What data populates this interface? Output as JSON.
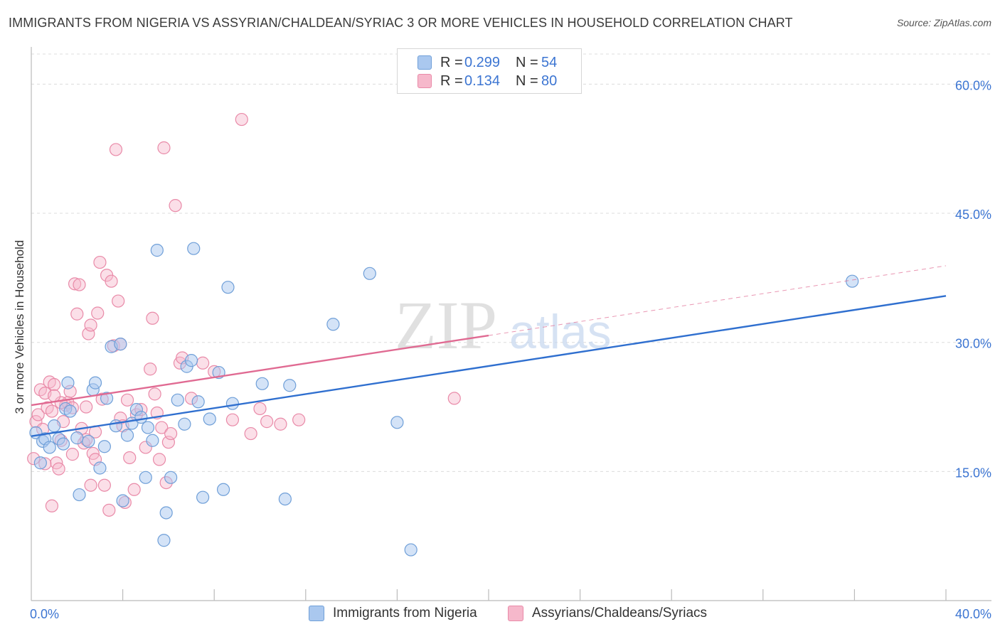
{
  "title": "IMMIGRANTS FROM NIGERIA VS ASSYRIAN/CHALDEAN/SYRIAC 3 OR MORE VEHICLES IN HOUSEHOLD CORRELATION CHART",
  "source": "Source: ZipAtlas.com",
  "watermark": {
    "zip": "ZIP",
    "atlas": "atlas"
  },
  "legend": {
    "rows": [
      {
        "r_label": "R =",
        "r_value": "0.299",
        "n_label": "N =",
        "n_value": "54"
      },
      {
        "r_label": "R =",
        "r_value": "0.134",
        "n_label": "N =",
        "n_value": "80"
      }
    ]
  },
  "bottom_legend": {
    "series1": "Immigrants from Nigeria",
    "series2": "Assyrians/Chaldeans/Syriacs"
  },
  "colors": {
    "blue_fill": "#aac8ef",
    "blue_stroke": "#6f9fd8",
    "blue_line": "#2f6fcf",
    "pink_fill": "#f6b8cb",
    "pink_stroke": "#e98aa8",
    "pink_line": "#e06a92",
    "axis_text": "#3c75d2"
  },
  "chart_data": {
    "type": "scatter",
    "title": "IMMIGRANTS FROM NIGERIA VS ASSYRIAN/CHALDEAN/SYRIAC 3 OR MORE VEHICLES IN HOUSEHOLD CORRELATION CHART",
    "xlabel": "",
    "ylabel": "3 or more Vehicles in Household",
    "xlim": [
      0,
      40
    ],
    "ylim": [
      0,
      63.5
    ],
    "x_tick_labels": [
      "0.0%",
      "40.0%"
    ],
    "y_ticks": [
      15,
      30,
      45,
      60
    ],
    "y_tick_labels": [
      "15.0%",
      "30.0%",
      "45.0%",
      "60.0%"
    ],
    "series": [
      {
        "name": "Immigrants from Nigeria",
        "R": 0.299,
        "N": 54,
        "trend": {
          "x0": 0,
          "y0": 19.1,
          "x1": 40,
          "y1": 35.4,
          "solid_until": 40
        },
        "points": [
          [
            0.2,
            19.5
          ],
          [
            0.4,
            16.0
          ],
          [
            0.5,
            18.5
          ],
          [
            0.6,
            18.8
          ],
          [
            0.8,
            17.8
          ],
          [
            1.0,
            20.3
          ],
          [
            1.2,
            18.8
          ],
          [
            1.4,
            18.2
          ],
          [
            1.5,
            22.3
          ],
          [
            1.6,
            25.3
          ],
          [
            1.7,
            22.0
          ],
          [
            2.0,
            18.9
          ],
          [
            2.1,
            12.3
          ],
          [
            2.5,
            18.5
          ],
          [
            2.7,
            24.5
          ],
          [
            2.8,
            25.3
          ],
          [
            3.0,
            15.4
          ],
          [
            3.2,
            17.9
          ],
          [
            3.3,
            23.5
          ],
          [
            3.5,
            29.5
          ],
          [
            3.7,
            20.3
          ],
          [
            3.9,
            29.8
          ],
          [
            4.0,
            11.6
          ],
          [
            4.2,
            19.2
          ],
          [
            4.4,
            20.6
          ],
          [
            4.6,
            22.2
          ],
          [
            4.8,
            21.3
          ],
          [
            5.0,
            14.3
          ],
          [
            5.1,
            20.1
          ],
          [
            5.3,
            18.6
          ],
          [
            5.5,
            40.7
          ],
          [
            5.8,
            7.0
          ],
          [
            5.9,
            10.2
          ],
          [
            6.1,
            14.3
          ],
          [
            6.4,
            23.3
          ],
          [
            6.7,
            20.5
          ],
          [
            6.8,
            27.2
          ],
          [
            7.0,
            27.9
          ],
          [
            7.1,
            40.9
          ],
          [
            7.3,
            23.1
          ],
          [
            7.5,
            12.0
          ],
          [
            7.8,
            21.1
          ],
          [
            8.2,
            26.5
          ],
          [
            8.4,
            12.9
          ],
          [
            8.6,
            36.4
          ],
          [
            8.8,
            22.9
          ],
          [
            10.1,
            25.2
          ],
          [
            11.1,
            11.8
          ],
          [
            11.3,
            25.0
          ],
          [
            13.2,
            32.1
          ],
          [
            14.8,
            38.0
          ],
          [
            16.0,
            20.7
          ],
          [
            16.6,
            5.9
          ],
          [
            35.9,
            37.1
          ]
        ]
      },
      {
        "name": "Assyrians/Chaldeans/Syriacs",
        "R": 0.134,
        "N": 80,
        "trend": {
          "x0": 0,
          "y0": 22.7,
          "x1": 40,
          "y1": 38.9,
          "solid_until": 20
        },
        "points": [
          [
            0.1,
            16.5
          ],
          [
            0.2,
            20.8
          ],
          [
            0.3,
            21.6
          ],
          [
            0.4,
            24.5
          ],
          [
            0.5,
            19.9
          ],
          [
            0.6,
            24.1
          ],
          [
            0.7,
            22.4
          ],
          [
            0.8,
            25.4
          ],
          [
            0.9,
            22.0
          ],
          [
            1.0,
            25.1
          ],
          [
            1.1,
            16.0
          ],
          [
            1.2,
            15.3
          ],
          [
            1.3,
            18.6
          ],
          [
            1.4,
            20.8
          ],
          [
            1.5,
            22.7
          ],
          [
            1.6,
            23.0
          ],
          [
            1.7,
            24.3
          ],
          [
            1.8,
            17.0
          ],
          [
            1.9,
            36.8
          ],
          [
            2.0,
            33.3
          ],
          [
            2.1,
            36.7
          ],
          [
            2.2,
            20.0
          ],
          [
            2.3,
            18.3
          ],
          [
            2.4,
            22.5
          ],
          [
            2.5,
            31.0
          ],
          [
            2.6,
            13.4
          ],
          [
            2.7,
            17.1
          ],
          [
            2.8,
            19.6
          ],
          [
            2.9,
            33.4
          ],
          [
            3.0,
            39.3
          ],
          [
            3.1,
            23.4
          ],
          [
            3.2,
            13.4
          ],
          [
            3.3,
            37.8
          ],
          [
            3.4,
            10.5
          ],
          [
            3.5,
            37.1
          ],
          [
            3.6,
            29.6
          ],
          [
            3.7,
            52.4
          ],
          [
            3.8,
            34.8
          ],
          [
            3.9,
            21.2
          ],
          [
            4.0,
            20.3
          ],
          [
            4.1,
            11.4
          ],
          [
            4.2,
            23.3
          ],
          [
            4.3,
            16.6
          ],
          [
            4.5,
            12.9
          ],
          [
            4.6,
            21.6
          ],
          [
            4.8,
            22.2
          ],
          [
            5.0,
            17.8
          ],
          [
            5.2,
            26.9
          ],
          [
            5.3,
            32.8
          ],
          [
            5.4,
            24.0
          ],
          [
            5.5,
            21.8
          ],
          [
            5.6,
            16.4
          ],
          [
            5.7,
            20.1
          ],
          [
            5.8,
            52.6
          ],
          [
            5.9,
            13.7
          ],
          [
            6.0,
            18.4
          ],
          [
            6.1,
            19.4
          ],
          [
            6.3,
            45.9
          ],
          [
            6.5,
            27.6
          ],
          [
            6.6,
            28.2
          ],
          [
            7.0,
            23.5
          ],
          [
            7.5,
            27.6
          ],
          [
            8.0,
            26.6
          ],
          [
            8.8,
            21.0
          ],
          [
            9.2,
            55.9
          ],
          [
            9.6,
            19.4
          ],
          [
            10.0,
            22.3
          ],
          [
            10.3,
            20.8
          ],
          [
            10.9,
            20.5
          ],
          [
            11.7,
            21.0
          ],
          [
            18.5,
            23.5
          ],
          [
            0.9,
            11.0
          ],
          [
            1.3,
            23.0
          ],
          [
            1.8,
            22.4
          ],
          [
            2.6,
            32.0
          ],
          [
            2.8,
            16.4
          ],
          [
            3.9,
            29.8
          ],
          [
            1.0,
            23.8
          ],
          [
            2.4,
            18.7
          ],
          [
            0.6,
            15.9
          ]
        ]
      }
    ]
  }
}
